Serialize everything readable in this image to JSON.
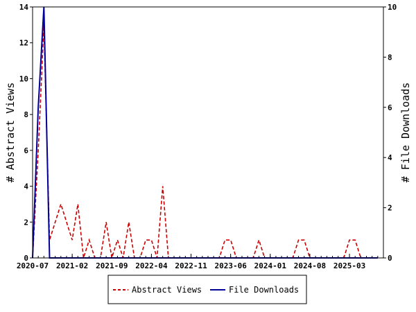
{
  "chart_data": {
    "type": "line",
    "xlim": [
      "2020-07-01",
      "2025-09-01"
    ],
    "x_ticks": [
      "2020-07",
      "2021-02",
      "2021-09",
      "2022-04",
      "2022-11",
      "2023-06",
      "2024-01",
      "2024-08",
      "2025-03"
    ],
    "y_left": {
      "label": "# Abstract Views",
      "lim": [
        0,
        14
      ],
      "ticks": [
        0,
        2,
        4,
        6,
        8,
        10,
        12,
        14
      ]
    },
    "y_right": {
      "label": "# File Downloads",
      "lim": [
        0,
        10
      ],
      "ticks": [
        0,
        2,
        4,
        6,
        8,
        10
      ]
    },
    "grid": false,
    "legend_position": "bottom-center",
    "series": [
      {
        "name": "Abstract Views",
        "axis": "left",
        "color": "#cc0000",
        "style": "dashed",
        "x": [
          "2020-07",
          "2020-08",
          "2020-09",
          "2020-10",
          "2020-11",
          "2020-12",
          "2021-01",
          "2021-02",
          "2021-03",
          "2021-04",
          "2021-05",
          "2021-06",
          "2021-07",
          "2021-08",
          "2021-09",
          "2021-10",
          "2021-11",
          "2021-12",
          "2022-01",
          "2022-02",
          "2022-03",
          "2022-04",
          "2022-05",
          "2022-06",
          "2022-07",
          "2022-08",
          "2022-09",
          "2022-10",
          "2022-11",
          "2022-12",
          "2023-01",
          "2023-02",
          "2023-03",
          "2023-04",
          "2023-05",
          "2023-06",
          "2023-07",
          "2023-08",
          "2023-09",
          "2023-10",
          "2023-11",
          "2023-12",
          "2024-01",
          "2024-02",
          "2024-03",
          "2024-04",
          "2024-05",
          "2024-06",
          "2024-07",
          "2024-08",
          "2024-09",
          "2024-10",
          "2024-11",
          "2024-12",
          "2025-01",
          "2025-02",
          "2025-03",
          "2025-04",
          "2025-05",
          "2025-06",
          "2025-07",
          "2025-08"
        ],
        "y": [
          0,
          6,
          13,
          1,
          2,
          3,
          2,
          1,
          3,
          0,
          1,
          0,
          0,
          2,
          0,
          1,
          0,
          2,
          0,
          0,
          1,
          1,
          0,
          4,
          0,
          0,
          0,
          0,
          0,
          0,
          0,
          0,
          0,
          0,
          1,
          1,
          0,
          0,
          0,
          0,
          1,
          0,
          0,
          0,
          0,
          0,
          0,
          1,
          1,
          0,
          0,
          0,
          0,
          0,
          0,
          0,
          1,
          1,
          0,
          0,
          0,
          0
        ]
      },
      {
        "name": "File Downloads",
        "axis": "right",
        "color": "#000099",
        "style": "solid",
        "x": [
          "2020-07",
          "2020-08",
          "2020-09",
          "2020-10",
          "2020-11",
          "2020-12",
          "2021-01",
          "2021-02",
          "2021-03",
          "2021-04",
          "2021-05",
          "2021-06",
          "2021-07",
          "2021-08",
          "2021-09",
          "2021-10",
          "2021-11",
          "2021-12",
          "2022-01",
          "2022-02",
          "2022-03",
          "2022-04",
          "2022-05",
          "2022-06",
          "2022-07",
          "2022-08",
          "2022-09",
          "2022-10",
          "2022-11",
          "2022-12",
          "2023-01",
          "2023-02",
          "2023-03",
          "2023-04",
          "2023-05",
          "2023-06",
          "2023-07",
          "2023-08",
          "2023-09",
          "2023-10",
          "2023-11",
          "2023-12",
          "2024-01",
          "2024-02",
          "2024-03",
          "2024-04",
          "2024-05",
          "2024-06",
          "2024-07",
          "2024-08",
          "2024-09",
          "2024-10",
          "2024-11",
          "2024-12",
          "2025-01",
          "2025-02",
          "2025-03",
          "2025-04",
          "2025-05",
          "2025-06",
          "2025-07",
          "2025-08"
        ],
        "y": [
          0,
          6,
          10,
          0,
          0,
          0,
          0,
          0,
          0,
          0,
          0,
          0,
          0,
          0,
          0,
          0,
          0,
          0,
          0,
          0,
          0,
          0,
          0,
          0,
          0,
          0,
          0,
          0,
          0,
          0,
          0,
          0,
          0,
          0,
          0,
          0,
          0,
          0,
          0,
          0,
          0,
          0,
          0,
          0,
          0,
          0,
          0,
          0,
          0,
          0,
          0,
          0,
          0,
          0,
          0,
          0,
          0,
          0,
          0,
          0,
          0,
          0
        ]
      }
    ]
  }
}
